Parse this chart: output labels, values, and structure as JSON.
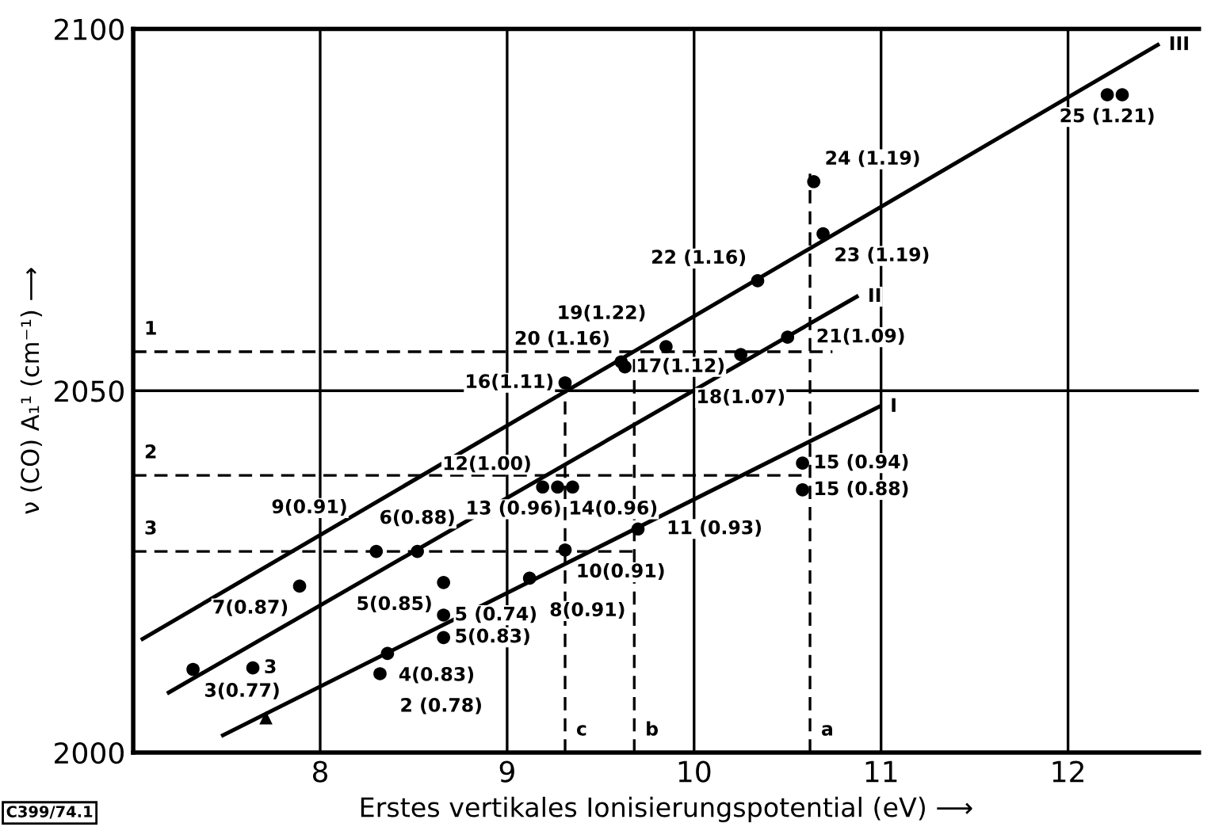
{
  "chart_data": {
    "type": "scatter",
    "xlabel": "Erstes vertikales Ionisierungspotential (eV) ⟶",
    "ylabel": "ν (CO) A₁¹ (cm⁻¹) ⟶",
    "xlim": [
      7,
      12.7
    ],
    "ylim": [
      2000,
      2100
    ],
    "xticks": [
      8,
      9,
      10,
      11,
      12
    ],
    "yticks": [
      2000,
      2050,
      2100
    ],
    "grid": true,
    "series": [
      {
        "color": "#000000",
        "marker": "circle",
        "x": [
          7.32,
          7.64,
          7.89,
          8.36,
          8.32,
          8.3,
          8.52,
          8.66,
          8.66,
          8.66,
          9.19,
          9.27,
          9.35,
          9.31,
          9.12,
          9.7,
          10.58,
          10.58,
          9.31,
          9.61,
          9.85,
          9.63,
          10.25,
          10.5,
          10.34,
          10.69,
          10.64,
          12.21,
          12.29
        ],
        "values": [
          2011.5,
          2011.7,
          2023,
          2013.7,
          2010.9,
          2027.8,
          2027.8,
          2023.5,
          2019,
          2015.9,
          2036.7,
          2036.7,
          2036.7,
          2028,
          2024.1,
          2030.9,
          2040,
          2036.3,
          2051.1,
          2054,
          2056.1,
          2053.3,
          2055,
          2057.4,
          2065.2,
          2071.7,
          2078.9,
          2090.9,
          2090.9
        ]
      },
      {
        "color": "#000000",
        "marker": "triangle",
        "x": [
          7.71
        ],
        "values": [
          2004.8
        ]
      },
      {
        "type": "line",
        "color": "#000000",
        "marker": "none",
        "line_style": "solid",
        "x": [
          7.48,
          10.99
        ],
        "values": [
          2002.4,
          2047.8
        ]
      },
      {
        "type": "line",
        "color": "#000000",
        "marker": "none",
        "line_style": "solid",
        "x": [
          7.19,
          10.87
        ],
        "values": [
          2008.3,
          2063
        ]
      },
      {
        "type": "line",
        "color": "#000000",
        "marker": "none",
        "line_style": "solid",
        "x": [
          7.05,
          12.48
        ],
        "values": [
          2015.7,
          2097.8
        ]
      },
      {
        "type": "line",
        "color": "#000000",
        "marker": "none",
        "line_style": "dashed",
        "x": [
          7,
          10.74
        ],
        "values": [
          2055.4,
          2055.4
        ]
      },
      {
        "type": "line",
        "color": "#000000",
        "marker": "none",
        "line_style": "dashed",
        "x": [
          7,
          10.62
        ],
        "values": [
          2038.3,
          2038.3
        ]
      },
      {
        "type": "line",
        "color": "#000000",
        "marker": "none",
        "line_style": "dashed",
        "x": [
          7,
          9.69
        ],
        "values": [
          2027.8,
          2027.8
        ]
      },
      {
        "type": "line",
        "color": "#000000",
        "marker": "none",
        "line_style": "dashed",
        "x": [
          10.62,
          10.62
        ],
        "values": [
          2000,
          2080
        ]
      },
      {
        "type": "line",
        "color": "#000000",
        "marker": "none",
        "line_style": "dashed",
        "x": [
          9.68,
          9.68
        ],
        "values": [
          2000,
          2055
        ]
      },
      {
        "type": "line",
        "color": "#000000",
        "marker": "none",
        "line_style": "dashed",
        "x": [
          9.31,
          9.31
        ],
        "values": [
          2000,
          2050
        ]
      }
    ],
    "annotations": [
      {
        "text": "3(0.77)",
        "x": 7.32,
        "y": 2011.5
      },
      {
        "text": "3",
        "x": 7.64,
        "y": 2011.7
      },
      {
        "text": "7(0.87)",
        "x": 7.89,
        "y": 2023
      },
      {
        "text": "4(0.83)",
        "x": 8.36,
        "y": 2013.7
      },
      {
        "text": "2 (0.78)",
        "x": 8.32,
        "y": 2010.9
      },
      {
        "text": "9(0.91)",
        "x": 8.3,
        "y": 2027.8
      },
      {
        "text": "6(0.88)",
        "x": 8.52,
        "y": 2027.8
      },
      {
        "text": "5(0.85)",
        "x": 8.66,
        "y": 2023.5
      },
      {
        "text": "5(0.83)",
        "x": 8.66,
        "y": 2019
      },
      {
        "text": "5 (0.74)",
        "x": 8.66,
        "y": 2015.9
      },
      {
        "text": "12(1.00)",
        "x": 9.19,
        "y": 2036.7
      },
      {
        "text": "13 (0.96)",
        "x": 9.35,
        "y": 2036.7
      },
      {
        "text": "14(0.96)",
        "x": 9.27,
        "y": 2036.7
      },
      {
        "text": "10(0.91)",
        "x": 9.31,
        "y": 2028
      },
      {
        "text": "8(0.91)",
        "x": 9.12,
        "y": 2024.1
      },
      {
        "text": "11 (0.93)",
        "x": 9.7,
        "y": 2030.9
      },
      {
        "text": "15 (0.94)",
        "x": 10.58,
        "y": 2040
      },
      {
        "text": "15 (0.88)",
        "x": 10.58,
        "y": 2036.3
      },
      {
        "text": "16(1.11)",
        "x": 9.31,
        "y": 2051.1
      },
      {
        "text": "20 (1.16)",
        "x": 9.61,
        "y": 2054
      },
      {
        "text": "19(1.22)",
        "x": 9.85,
        "y": 2056.1
      },
      {
        "text": "17(1.12)",
        "x": 9.63,
        "y": 2053.3
      },
      {
        "text": "18(1.07)",
        "x": 10.25,
        "y": 2055
      },
      {
        "text": "21(1.09)",
        "x": 10.5,
        "y": 2057.4
      },
      {
        "text": "22 (1.16)",
        "x": 10.34,
        "y": 2065.2
      },
      {
        "text": "23 (1.19)",
        "x": 10.69,
        "y": 2071.7
      },
      {
        "text": "24 (1.19)",
        "x": 10.64,
        "y": 2078.9
      },
      {
        "text": "25 (1.21)",
        "x": 12.21,
        "y": 2090.9
      },
      {
        "text": "1",
        "x": 7,
        "y": 2055.4
      },
      {
        "text": "2",
        "x": 7,
        "y": 2038.3
      },
      {
        "text": "3",
        "x": 7,
        "y": 2027.8
      },
      {
        "text": "c",
        "x": 9.31,
        "y": 2000
      },
      {
        "text": "b",
        "x": 9.68,
        "y": 2000
      },
      {
        "text": "a",
        "x": 10.62,
        "y": 2000
      },
      {
        "text": "I",
        "x": 10.99,
        "y": 2047.8
      },
      {
        "text": "II",
        "x": 10.87,
        "y": 2063
      },
      {
        "text": "III",
        "x": 12.48,
        "y": 2097.8
      },
      "C399/74.1"
    ]
  }
}
